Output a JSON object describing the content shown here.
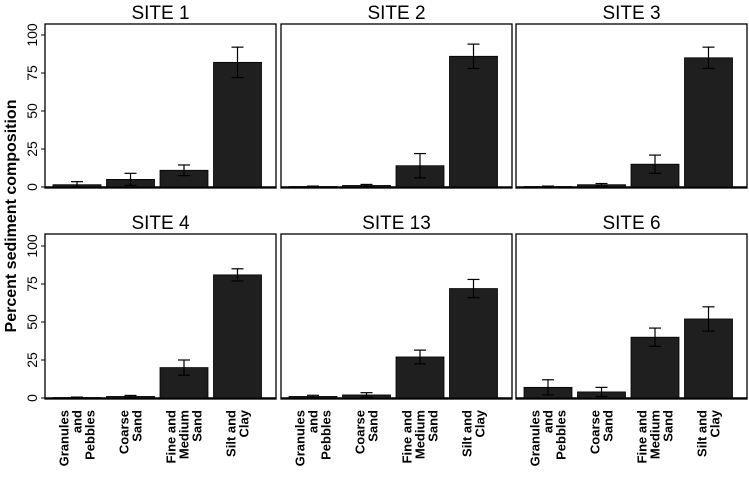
{
  "chart_data": {
    "type": "bar",
    "ylabel": "Percent sediment composition",
    "ylim": [
      0,
      105
    ],
    "yticks": [
      0,
      25,
      50,
      75,
      100
    ],
    "categories": [
      [
        "Granules",
        "and",
        "Pebbles"
      ],
      [
        "Coarse",
        "Sand"
      ],
      [
        "Fine and",
        "Medium",
        "Sand"
      ],
      [
        "Silt and",
        "Clay"
      ]
    ],
    "error_bars": true,
    "panels": [
      {
        "title": "SITE 1",
        "values": [
          1.5,
          5,
          11,
          82
        ],
        "errors": [
          2,
          4,
          3.5,
          10
        ]
      },
      {
        "title": "SITE 2",
        "values": [
          0.3,
          1,
          14,
          86
        ],
        "errors": [
          0.3,
          0.7,
          8,
          8
        ]
      },
      {
        "title": "SITE 3",
        "values": [
          0.3,
          1.5,
          15,
          85
        ],
        "errors": [
          0.3,
          0.8,
          6,
          7
        ]
      },
      {
        "title": "SITE 4",
        "values": [
          0.3,
          1,
          20,
          81
        ],
        "errors": [
          0.3,
          0.7,
          5,
          4
        ]
      },
      {
        "title": "SITE 13",
        "values": [
          1,
          2,
          27,
          72
        ],
        "errors": [
          0.8,
          1.5,
          4.5,
          6
        ]
      },
      {
        "title": "SITE 6",
        "values": [
          7,
          4,
          40,
          52
        ],
        "errors": [
          5,
          3,
          6,
          8
        ]
      }
    ]
  }
}
